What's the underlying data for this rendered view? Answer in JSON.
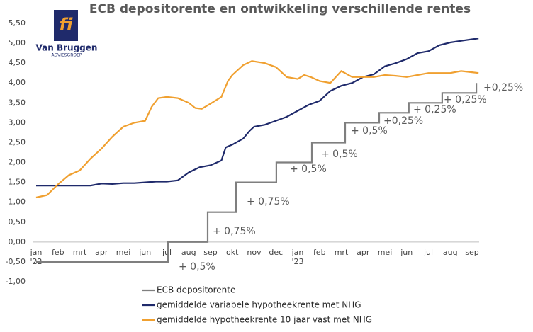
{
  "logo": {
    "mark": "fi",
    "name": "Van Bruggen",
    "sub": "ADVIESGROEP"
  },
  "chart_data": {
    "type": "line",
    "title": "ECB depositorente en ontwikkeling verschillende rentes",
    "ylim": [
      -1,
      5.5
    ],
    "yticks": [
      {
        "value": -1,
        "label": "-1,00"
      },
      {
        "value": -0.5,
        "label": "-0,50"
      },
      {
        "value": 0,
        "label": "0,00"
      },
      {
        "value": 0.5,
        "label": "0,50"
      },
      {
        "value": 1,
        "label": "1,00"
      },
      {
        "value": 1.5,
        "label": "1,50"
      },
      {
        "value": 2,
        "label": "2,00"
      },
      {
        "value": 2.5,
        "label": "2,50"
      },
      {
        "value": 3,
        "label": "3,00"
      },
      {
        "value": 3.5,
        "label": "3,50"
      },
      {
        "value": 4,
        "label": "4,00"
      },
      {
        "value": 4.5,
        "label": "4,50"
      },
      {
        "value": 5,
        "label": "5,00"
      },
      {
        "value": 5.5,
        "label": "5,50"
      }
    ],
    "xlim": [
      0,
      20
    ],
    "xticks": [
      {
        "value": 0,
        "label": "jan"
      },
      {
        "value": 1,
        "label": "feb"
      },
      {
        "value": 2,
        "label": "mrt"
      },
      {
        "value": 3,
        "label": "apr"
      },
      {
        "value": 4,
        "label": "mei"
      },
      {
        "value": 5,
        "label": "jun"
      },
      {
        "value": 6,
        "label": "jul"
      },
      {
        "value": 7,
        "label": "aug"
      },
      {
        "value": 8,
        "label": "sep"
      },
      {
        "value": 9,
        "label": "okt"
      },
      {
        "value": 10,
        "label": "nov"
      },
      {
        "value": 11,
        "label": "dec"
      },
      {
        "value": 12,
        "label": "jan"
      },
      {
        "value": 13,
        "label": "feb"
      },
      {
        "value": 14,
        "label": "mrt"
      },
      {
        "value": 15,
        "label": "apr"
      },
      {
        "value": 16,
        "label": "mei"
      },
      {
        "value": 17,
        "label": "jun"
      },
      {
        "value": 18,
        "label": "jul"
      },
      {
        "value": 19,
        "label": "aug"
      },
      {
        "value": 20,
        "label": "sep"
      }
    ],
    "years": [
      {
        "value": 0,
        "label": "'22"
      },
      {
        "value": 12,
        "label": "'23"
      }
    ],
    "grid": false,
    "series": [
      {
        "name": "ECB depositorente",
        "color": "#7f7f7f",
        "x": [
          0,
          6.05,
          6.05,
          7.87,
          7.87,
          9.17,
          9.17,
          11.02,
          11.02,
          12.65,
          12.65,
          14.18,
          14.18,
          15.74,
          15.74,
          17.1,
          17.1,
          18.63,
          18.63,
          20.2,
          20.2
        ],
        "values": [
          -0.5,
          -0.5,
          0,
          0,
          0.75,
          0.75,
          1.5,
          1.5,
          2,
          2,
          2.5,
          2.5,
          3,
          3,
          3.25,
          3.25,
          3.5,
          3.5,
          3.75,
          3.75,
          4
        ]
      },
      {
        "name": "gemiddelde variabele hypotheekrente met NHG",
        "color": "#1f2a6b",
        "x": [
          0,
          0.5,
          1,
          1.5,
          2,
          2.5,
          3,
          3.5,
          4,
          4.5,
          5,
          5.5,
          6,
          6.5,
          7,
          7.5,
          8,
          8.5,
          8.7,
          9,
          9.5,
          9.8,
          10,
          10.5,
          11,
          11.5,
          12,
          12.5,
          13,
          13.5,
          14,
          14.5,
          15,
          15.5,
          16,
          16.5,
          17,
          17.5,
          18,
          18.5,
          19,
          19.5,
          20,
          20.3
        ],
        "values": [
          1.42,
          1.42,
          1.42,
          1.42,
          1.42,
          1.42,
          1.47,
          1.46,
          1.48,
          1.48,
          1.5,
          1.52,
          1.52,
          1.55,
          1.75,
          1.88,
          1.93,
          2.05,
          2.38,
          2.45,
          2.6,
          2.8,
          2.9,
          2.95,
          3.05,
          3.15,
          3.3,
          3.45,
          3.55,
          3.8,
          3.93,
          4.0,
          4.15,
          4.22,
          4.42,
          4.5,
          4.6,
          4.75,
          4.8,
          4.95,
          5.02,
          5.06,
          5.1,
          5.12
        ]
      },
      {
        "name": "gemiddelde hypotheekrente 10 jaar vast met NHG",
        "color": "#f0a030",
        "x": [
          0,
          0.5,
          1,
          1.5,
          2,
          2.5,
          3,
          3.5,
          4,
          4.5,
          5,
          5.3,
          5.6,
          6,
          6.5,
          7,
          7.3,
          7.6,
          8,
          8.5,
          8.8,
          9,
          9.5,
          9.9,
          10.5,
          11,
          11.5,
          12,
          12.3,
          12.6,
          13,
          13.5,
          14,
          14.5,
          15,
          15.5,
          16,
          16.5,
          17,
          17.5,
          18,
          18.5,
          19,
          19.5,
          20,
          20.3
        ],
        "values": [
          1.12,
          1.18,
          1.45,
          1.68,
          1.8,
          2.1,
          2.35,
          2.65,
          2.9,
          3.0,
          3.05,
          3.4,
          3.62,
          3.65,
          3.62,
          3.5,
          3.37,
          3.35,
          3.48,
          3.65,
          4.05,
          4.2,
          4.45,
          4.55,
          4.5,
          4.4,
          4.15,
          4.1,
          4.2,
          4.15,
          4.05,
          4.0,
          4.3,
          4.15,
          4.15,
          4.15,
          4.2,
          4.18,
          4.15,
          4.2,
          4.25,
          4.25,
          4.25,
          4.3,
          4.27,
          4.25
        ]
      }
    ],
    "annotations": [
      "+ 0,5%",
      "+ 0,75%",
      "+ 0,75%",
      "+ 0,5%",
      "+ 0,5%",
      "+ 0,5%",
      "+0,25%",
      "+ 0,25%",
      "+ 0,25%",
      "+0,25%"
    ]
  }
}
